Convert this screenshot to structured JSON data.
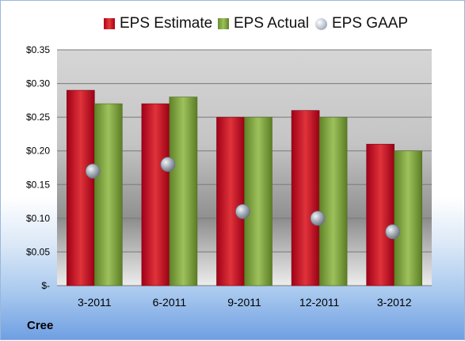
{
  "company": "Cree",
  "colors": {
    "estimate": "#c8102e",
    "actual": "#7fa23c",
    "gaap": "#9aa4b0"
  },
  "chart_data": {
    "type": "bar",
    "categories": [
      "3-2011",
      "6-2011",
      "9-2011",
      "12-2011",
      "3-2012"
    ],
    "series": [
      {
        "name": "EPS Estimate",
        "type": "bar",
        "values": [
          0.29,
          0.27,
          0.25,
          0.26,
          0.21
        ]
      },
      {
        "name": "EPS Actual",
        "type": "bar",
        "values": [
          0.27,
          0.28,
          0.25,
          0.25,
          0.2
        ]
      },
      {
        "name": "EPS GAAP",
        "type": "scatter",
        "values": [
          0.17,
          0.18,
          0.11,
          0.1,
          0.08
        ]
      }
    ],
    "ylim": [
      0,
      0.35
    ],
    "yticks": [
      0,
      0.05,
      0.1,
      0.15,
      0.2,
      0.25,
      0.3,
      0.35
    ],
    "ytick_labels": [
      "$-",
      "$0.05",
      "$0.10",
      "$0.15",
      "$0.20",
      "$0.25",
      "$0.30",
      "$0.35"
    ],
    "grid": true,
    "legend_position": "top"
  }
}
